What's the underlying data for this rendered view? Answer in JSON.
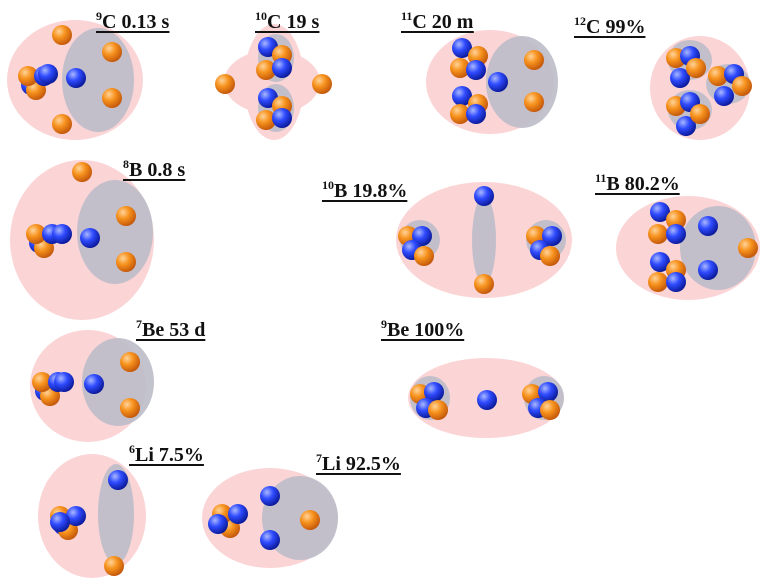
{
  "colors": {
    "nucleus_outer": "#fbd4d6",
    "cluster_grey": "#bcbcc9",
    "proton_light": "#ffd39a",
    "proton_mid": "#f7931e",
    "proton_dark": "#c4580a",
    "neutron_light": "#a9b8ff",
    "neutron_mid": "#2f4bff",
    "neutron_dark": "#0b1a9a",
    "label": "#111111"
  },
  "particle_legend": {
    "proton": "orange-sphere",
    "neutron": "blue-sphere"
  },
  "nuclei": [
    {
      "id": "c9",
      "mass": "9",
      "symbol": "C",
      "value": "0.13 s"
    },
    {
      "id": "c10",
      "mass": "10",
      "symbol": "C",
      "value": "19 s"
    },
    {
      "id": "c11",
      "mass": "11",
      "symbol": "C",
      "value": "20 m"
    },
    {
      "id": "c12",
      "mass": "12",
      "symbol": "C",
      "value": "99%"
    },
    {
      "id": "b8",
      "mass": "8",
      "symbol": "B",
      "value": "0.8 s"
    },
    {
      "id": "b10",
      "mass": "10",
      "symbol": "B",
      "value": "19.8%"
    },
    {
      "id": "b11",
      "mass": "11",
      "symbol": "B",
      "value": "80.2%"
    },
    {
      "id": "be7",
      "mass": "7",
      "symbol": "Be",
      "value": "53 d"
    },
    {
      "id": "be9",
      "mass": "9",
      "symbol": "Be",
      "value": "100%"
    },
    {
      "id": "li6",
      "mass": "6",
      "symbol": "Li",
      "value": "7.5%"
    },
    {
      "id": "li7",
      "mass": "7",
      "symbol": "Li",
      "value": "92.5%"
    }
  ]
}
